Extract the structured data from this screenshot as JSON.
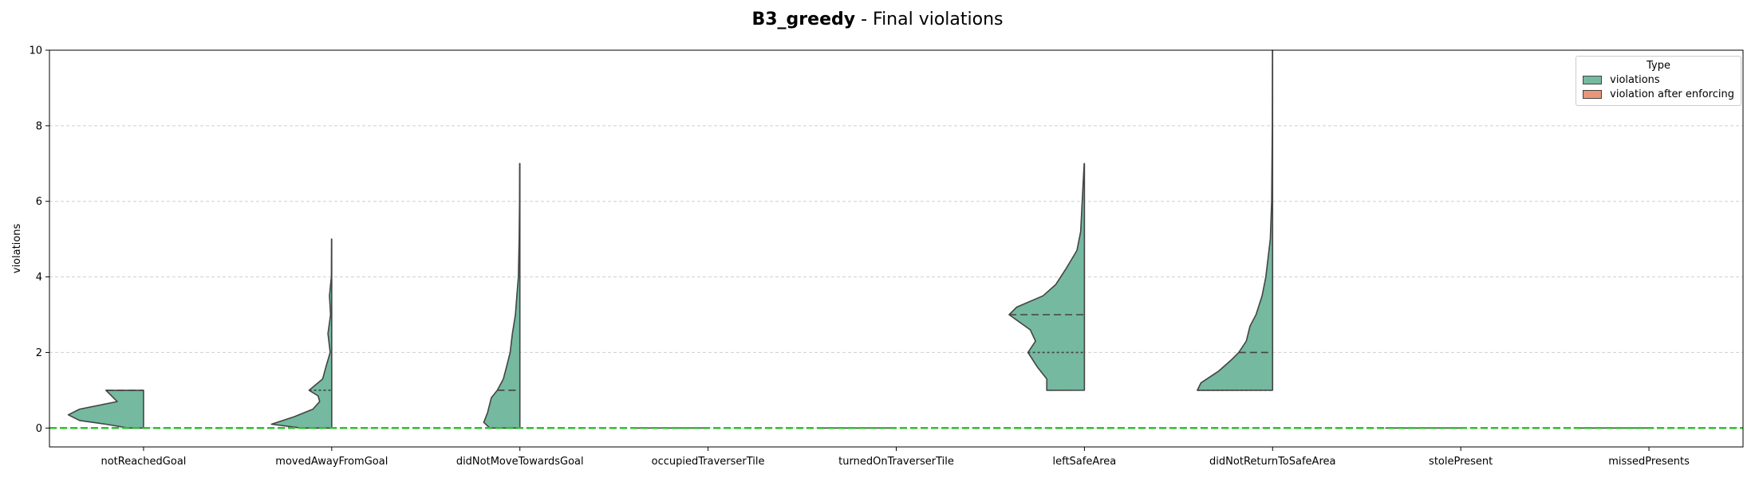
{
  "chart_data": {
    "type": "violin",
    "title_bold": "B3_greedy",
    "title_rest": " - Final violations",
    "xlabel": "",
    "ylabel": "violations",
    "ylim": [
      -0.5,
      10
    ],
    "yticks": [
      0,
      2,
      4,
      6,
      8,
      10
    ],
    "grid": "y-dashed",
    "legend": {
      "title": "Type",
      "placement": "top-right",
      "entries": [
        {
          "label": "violations",
          "color": "#74b9a0"
        },
        {
          "label": "violation after enforcing",
          "color": "#e9967a"
        }
      ]
    },
    "reference_line": {
      "y": 0,
      "color": "#2ec02e"
    },
    "categories": [
      "notReachedGoal",
      "movedAwayFromGoal",
      "didNotMoveTowardsGoal",
      "occupiedTraverserTile",
      "turnedOnTraverserTile",
      "leftSafeArea",
      "didNotReturnToSafeArea",
      "stolePresent",
      "missedPresents"
    ],
    "series": [
      {
        "name": "violations",
        "color": "#74b9a0",
        "violins": [
          {
            "min": 0,
            "max": 1,
            "q1": 0,
            "median": 1,
            "q3": 1,
            "profile": [
              [
                0,
                0.2
              ],
              [
                0.1,
                0.5
              ],
              [
                0.2,
                0.85
              ],
              [
                0.35,
                1
              ],
              [
                0.5,
                0.85
              ],
              [
                0.7,
                0.35
              ],
              [
                0.9,
                0.45
              ],
              [
                1,
                0.5
              ]
            ]
          },
          {
            "min": 0,
            "max": 5,
            "q1": 0,
            "median": 0,
            "q3": 1,
            "profile": [
              [
                0,
                0.4
              ],
              [
                0.1,
                0.8
              ],
              [
                0.3,
                0.5
              ],
              [
                0.5,
                0.25
              ],
              [
                0.7,
                0.16
              ],
              [
                0.85,
                0.18
              ],
              [
                1,
                0.3
              ],
              [
                1.3,
                0.12
              ],
              [
                1.6,
                0.08
              ],
              [
                2,
                0.02
              ],
              [
                2.5,
                0.05
              ],
              [
                3,
                0.015
              ],
              [
                3.5,
                0.03
              ],
              [
                4,
                0.005
              ],
              [
                5,
                0.003
              ]
            ]
          },
          {
            "min": 0,
            "max": 7,
            "q1": 0,
            "median": 1,
            "q3": 1,
            "profile": [
              [
                0,
                0.4
              ],
              [
                0.15,
                0.48
              ],
              [
                0.4,
                0.43
              ],
              [
                0.8,
                0.38
              ],
              [
                1,
                0.3
              ],
              [
                1.3,
                0.22
              ],
              [
                1.6,
                0.18
              ],
              [
                2,
                0.13
              ],
              [
                2.5,
                0.1
              ],
              [
                3,
                0.06
              ],
              [
                3.5,
                0.04
              ],
              [
                4,
                0.02
              ],
              [
                5,
                0.01
              ],
              [
                6,
                0.005
              ],
              [
                7,
                0.003
              ]
            ]
          },
          {
            "min": 0,
            "max": 0,
            "q1": 0,
            "median": 0,
            "q3": 0,
            "flat": true
          },
          {
            "min": 0,
            "max": 0,
            "q1": 0,
            "median": 0,
            "q3": 0,
            "flat": true
          },
          {
            "min": 1,
            "max": 7,
            "q1": 2,
            "median": 3,
            "q3": 3,
            "profile": [
              [
                1,
                0.5
              ],
              [
                1.3,
                0.5
              ],
              [
                1.6,
                0.62
              ],
              [
                2,
                0.75
              ],
              [
                2.3,
                0.65
              ],
              [
                2.6,
                0.72
              ],
              [
                3,
                1
              ],
              [
                3.2,
                0.9
              ],
              [
                3.5,
                0.55
              ],
              [
                3.8,
                0.38
              ],
              [
                4.2,
                0.25
              ],
              [
                4.7,
                0.1
              ],
              [
                5.2,
                0.05
              ],
              [
                6,
                0.03
              ],
              [
                7,
                0.003
              ]
            ]
          },
          {
            "min": 1,
            "max": 10,
            "q1": 1,
            "median": 2,
            "q3": 2,
            "profile": [
              [
                1,
                1
              ],
              [
                1.2,
                0.95
              ],
              [
                1.5,
                0.72
              ],
              [
                1.8,
                0.55
              ],
              [
                2,
                0.45
              ],
              [
                2.3,
                0.35
              ],
              [
                2.7,
                0.3
              ],
              [
                3,
                0.22
              ],
              [
                3.5,
                0.14
              ],
              [
                4,
                0.09
              ],
              [
                5,
                0.03
              ],
              [
                6,
                0.012
              ],
              [
                8,
                0.004
              ],
              [
                10,
                0.002
              ]
            ]
          },
          {
            "min": 0,
            "max": 0,
            "q1": 0,
            "median": 0,
            "q3": 0,
            "flat": true
          },
          {
            "min": 0,
            "max": 0,
            "q1": 0,
            "median": 0,
            "q3": 0,
            "flat": true
          }
        ]
      }
    ]
  }
}
